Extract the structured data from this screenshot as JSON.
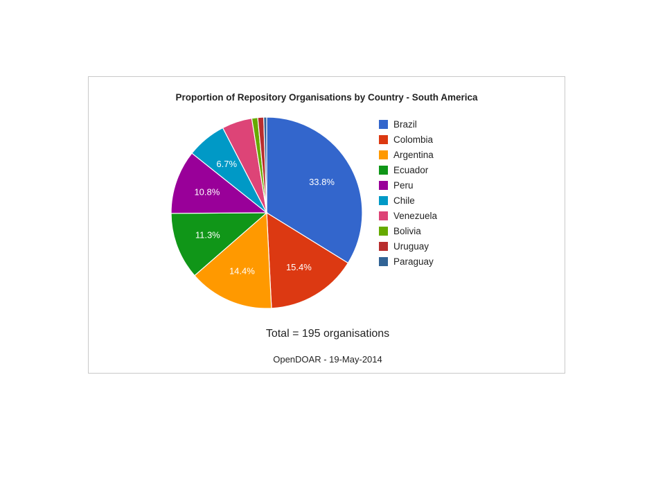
{
  "chart_data": {
    "type": "pie",
    "title": "Proportion of Repository Organisations by Country - South America",
    "total_text": "Total = 195 organisations",
    "source_text": "OpenDOAR - 19-May-2014",
    "legend_position": "right",
    "slices": [
      {
        "label": "Brazil",
        "value": 33.8,
        "display": "33.8%",
        "color": "#3366cc"
      },
      {
        "label": "Colombia",
        "value": 15.4,
        "display": "15.4%",
        "color": "#dc3912"
      },
      {
        "label": "Argentina",
        "value": 14.4,
        "display": "14.4%",
        "color": "#ff9900"
      },
      {
        "label": "Ecuador",
        "value": 11.3,
        "display": "11.3%",
        "color": "#109618"
      },
      {
        "label": "Peru",
        "value": 10.8,
        "display": "10.8%",
        "color": "#990099"
      },
      {
        "label": "Chile",
        "value": 6.7,
        "display": "6.7%",
        "color": "#0099c6"
      },
      {
        "label": "Venezuela",
        "value": 5.1,
        "display": "",
        "color": "#dd4477"
      },
      {
        "label": "Bolivia",
        "value": 1.0,
        "display": "",
        "color": "#66aa00"
      },
      {
        "label": "Uruguay",
        "value": 1.0,
        "display": "",
        "color": "#b82e2e"
      },
      {
        "label": "Paraguay",
        "value": 0.5,
        "display": "",
        "color": "#316395"
      }
    ]
  }
}
